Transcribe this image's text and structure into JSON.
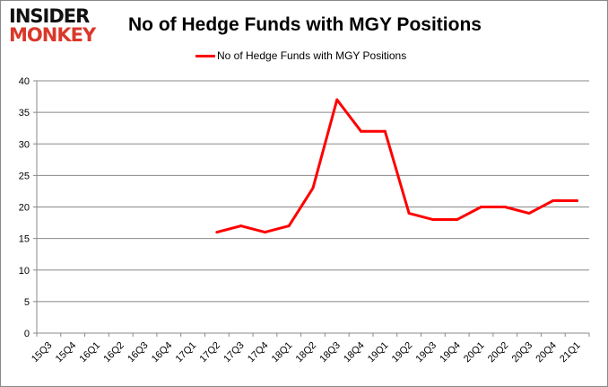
{
  "logo": {
    "line1": "INSIDER",
    "line2": "MONKEY"
  },
  "chart_data": {
    "type": "line",
    "title": "No of Hedge Funds with MGY Positions",
    "xlabel": "",
    "ylabel": "",
    "categories": [
      "15Q3",
      "15Q4",
      "16Q1",
      "16Q2",
      "16Q3",
      "16Q4",
      "17Q1",
      "17Q2",
      "17Q3",
      "17Q4",
      "18Q1",
      "18Q2",
      "18Q3",
      "18Q4",
      "19Q1",
      "19Q2",
      "19Q3",
      "19Q4",
      "20Q1",
      "20Q2",
      "20Q3",
      "20Q4",
      "21Q1"
    ],
    "series": [
      {
        "name": "No of Hedge Funds with MGY Positions",
        "color": "#ff0000",
        "values": [
          null,
          null,
          null,
          null,
          null,
          null,
          null,
          16,
          17,
          16,
          17,
          23,
          37,
          32,
          32,
          19,
          18,
          18,
          20,
          20,
          19,
          21,
          21
        ]
      }
    ],
    "ylim": [
      0,
      40
    ],
    "yticks": [
      0,
      5,
      10,
      15,
      20,
      25,
      30,
      35,
      40
    ],
    "grid": true,
    "legend_position": "top"
  }
}
